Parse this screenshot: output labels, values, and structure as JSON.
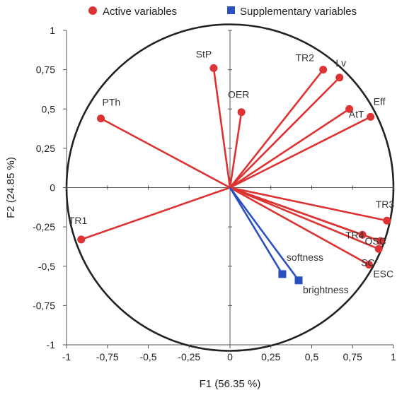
{
  "chart_data": {
    "type": "scatter",
    "subtype": "pca-correlation-circle",
    "xlabel": "F1 (56.35 %)",
    "ylabel": "F2 (24.85 %)",
    "xlim": [
      -1,
      1
    ],
    "ylim": [
      -1,
      1
    ],
    "x_ticks": [
      "-1",
      "-0,75",
      "-0,5",
      "-0,25",
      "0",
      "0,25",
      "0,5",
      "0,75",
      "1"
    ],
    "y_ticks": [
      "1",
      "0,75",
      "0,5",
      "0,25",
      "0",
      "-0,25",
      "-0,5",
      "-0,75",
      "-1"
    ],
    "grid": false,
    "legend_position": "top",
    "series": [
      {
        "name": "Active variables",
        "color": "#dd3333",
        "marker": "circle",
        "points": [
          {
            "label": "StP",
            "x": -0.1,
            "y": 0.76
          },
          {
            "label": "OER",
            "x": 0.07,
            "y": 0.48
          },
          {
            "label": "PTh",
            "x": -0.79,
            "y": 0.44
          },
          {
            "label": "TR2",
            "x": 0.57,
            "y": 0.75
          },
          {
            "label": "Lv",
            "x": 0.67,
            "y": 0.7
          },
          {
            "label": "AtT",
            "x": 0.73,
            "y": 0.5
          },
          {
            "label": "Eff",
            "x": 0.86,
            "y": 0.45
          },
          {
            "label": "TR1",
            "x": -0.91,
            "y": -0.33
          },
          {
            "label": "TR3",
            "x": 0.96,
            "y": -0.21
          },
          {
            "label": "TR4",
            "x": 0.81,
            "y": -0.3
          },
          {
            "label": "OSC",
            "x": 0.92,
            "y": -0.34
          },
          {
            "label": "SC",
            "x": 0.91,
            "y": -0.39
          },
          {
            "label": "ESC",
            "x": 0.85,
            "y": -0.49
          }
        ]
      },
      {
        "name": "Supplementary variables",
        "color": "#2a4fc0",
        "marker": "square",
        "points": [
          {
            "label": "softness",
            "x": 0.32,
            "y": -0.55
          },
          {
            "label": "brightness",
            "x": 0.42,
            "y": -0.59
          }
        ]
      }
    ]
  }
}
